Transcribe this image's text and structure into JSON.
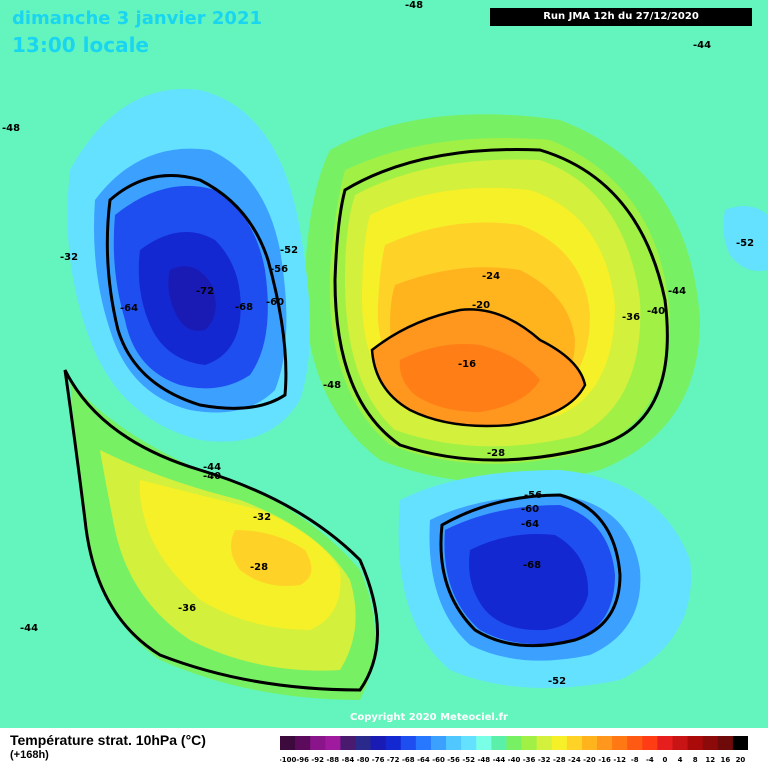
{
  "header": {
    "date_line": "dimanche 3 janvier 2021",
    "time_line": "13:00 locale",
    "run_info": "Run JMA 12h du 27/12/2020"
  },
  "footer": {
    "copyright": "Copyright 2020 Meteociel.fr",
    "legend_title": "Température strat. 10hPa (°C)",
    "legend_sub": "(+168h)"
  },
  "legend": {
    "labels": [
      "-100",
      "-96",
      "-92",
      "-88",
      "-84",
      "-80",
      "-76",
      "-72",
      "-68",
      "-64",
      "-60",
      "-56",
      "-52",
      "-48",
      "-44",
      "-40",
      "-36",
      "-32",
      "-28",
      "-24",
      "-20",
      "-16",
      "-12",
      "-8",
      "-4",
      "0",
      "4",
      "8",
      "12",
      "16",
      "20"
    ],
    "colors": [
      "#3d0a3d",
      "#5c0a5c",
      "#8a148a",
      "#a01aa0",
      "#4a1a6e",
      "#2a2a8c",
      "#1a1ab4",
      "#1428d2",
      "#1e4ef0",
      "#2878ff",
      "#3ca0ff",
      "#50c8ff",
      "#64e1ff",
      "#78ffe6",
      "#5af0aa",
      "#78f064",
      "#a0f046",
      "#d2f03c",
      "#f5f028",
      "#ffd228",
      "#ffb41e",
      "#ff961e",
      "#ff7814",
      "#ff5a14",
      "#ff3c14",
      "#e61e1e",
      "#c81414",
      "#aa0a0a",
      "#8c0a0a",
      "#6e0a0a",
      "#000000"
    ]
  },
  "contour_labels": [
    {
      "text": "-48"
    },
    {
      "text": "-44"
    },
    {
      "text": "-48"
    },
    {
      "text": "-52"
    },
    {
      "text": "-56"
    },
    {
      "text": "-60"
    },
    {
      "text": "-64"
    },
    {
      "text": "-68"
    },
    {
      "text": "-72"
    },
    {
      "text": "-48"
    },
    {
      "text": "-24"
    },
    {
      "text": "-20"
    },
    {
      "text": "-16"
    },
    {
      "text": "-36"
    },
    {
      "text": "-40"
    },
    {
      "text": "-44"
    },
    {
      "text": "-52"
    },
    {
      "text": "-28"
    },
    {
      "text": "-32"
    },
    {
      "text": "-44"
    },
    {
      "text": "-40"
    },
    {
      "text": "-32"
    },
    {
      "text": "-28"
    },
    {
      "text": "-36"
    },
    {
      "text": "-44"
    },
    {
      "text": "-56"
    },
    {
      "text": "-60"
    },
    {
      "text": "-64"
    },
    {
      "text": "-68"
    },
    {
      "text": "-52"
    }
  ]
}
